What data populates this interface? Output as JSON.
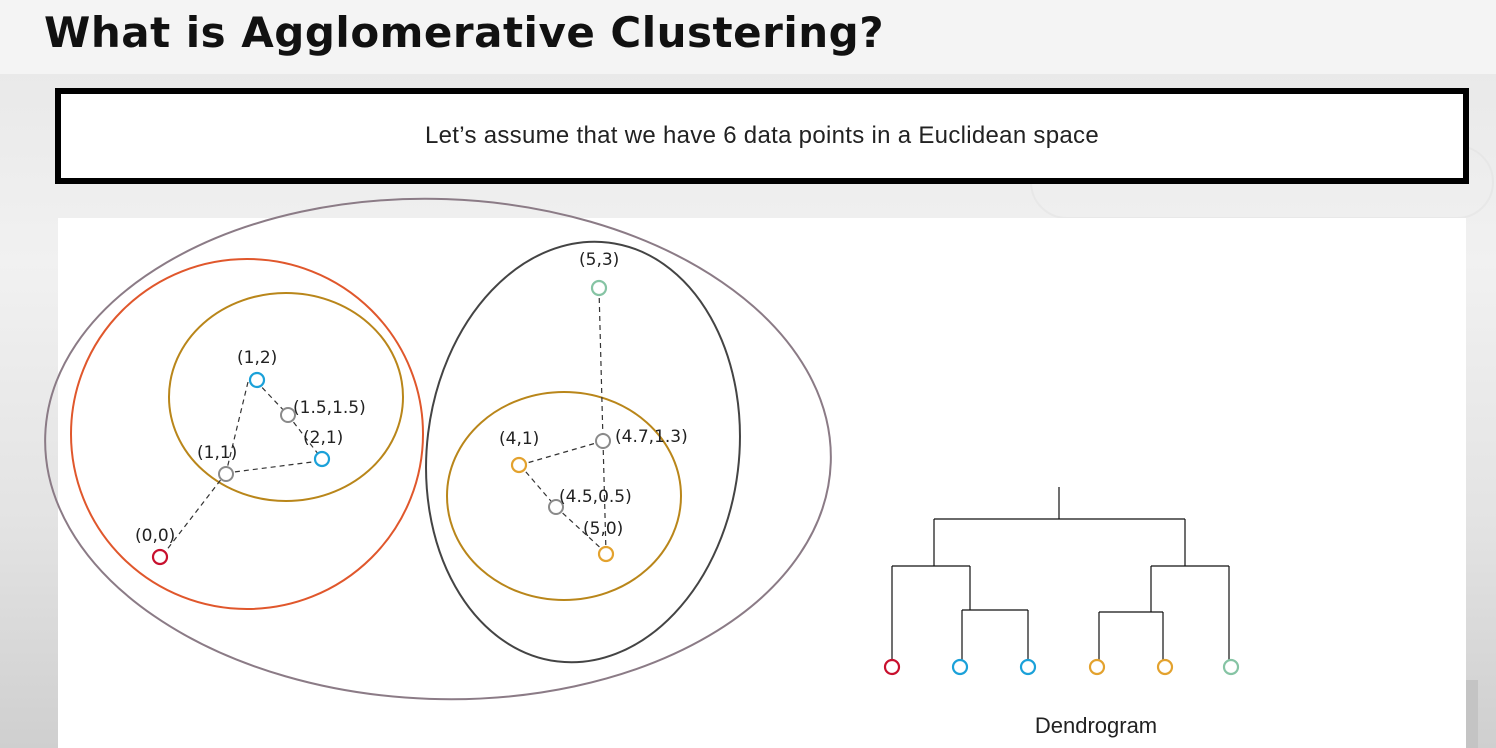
{
  "title": "What is Agglomerative Clustering?",
  "statement": "Let’s assume that we have 6 data points in a Euclidean space",
  "colors": {
    "red": "#c8102e",
    "blue": "#1ba1d9",
    "orange": "#e3a22e",
    "green": "#86c4a4",
    "centroid": "#8a8a8a",
    "cluster_inner": "#b9861a",
    "cluster_left_outer": "#e0572c",
    "cluster_right_outer": "#444444",
    "cluster_all": "#8b7b86"
  },
  "points": [
    {
      "label": "(0,0)",
      "color": "red"
    },
    {
      "label": "(1,2)",
      "color": "blue"
    },
    {
      "label": "(2,1)",
      "color": "blue"
    },
    {
      "label": "(4,1)",
      "color": "orange"
    },
    {
      "label": "(5,0)",
      "color": "orange"
    },
    {
      "label": "(5,3)",
      "color": "green"
    }
  ],
  "centroids": [
    {
      "label": "(1.5,1.5)"
    },
    {
      "label": "(1,1)"
    },
    {
      "label": "(4.5,0.5)"
    },
    {
      "label": "(4.7,1.3)"
    }
  ],
  "dendrogram": {
    "title": "Dendrogram",
    "leaves": [
      "red",
      "blue",
      "blue",
      "orange",
      "orange",
      "green"
    ]
  }
}
